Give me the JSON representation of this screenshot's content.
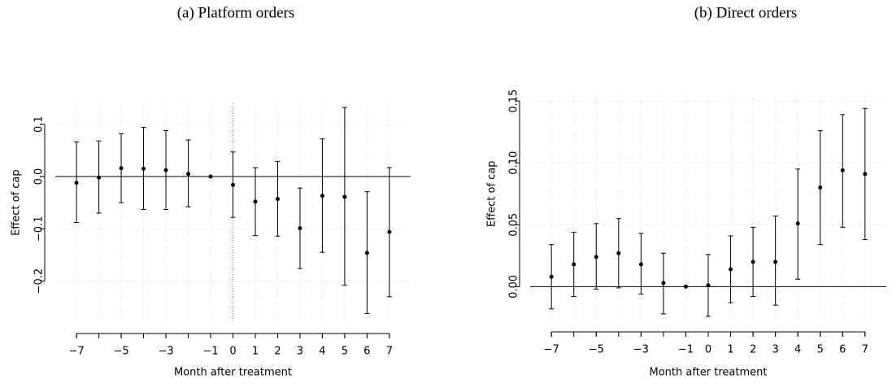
{
  "chart_data": [
    {
      "type": "errorbar",
      "title": "(a) Platform orders",
      "xlabel": "Month after treatment",
      "ylabel": "Effect of cap",
      "x": [
        -7,
        -6,
        -5,
        -4,
        -3,
        -2,
        -1,
        0,
        1,
        2,
        3,
        4,
        5,
        6,
        7
      ],
      "series": [
        {
          "color": "#000000",
          "values": [
            -0.012,
            -0.002,
            0.016,
            0.015,
            0.012,
            0.005,
            0,
            -0.016,
            -0.048,
            -0.043,
            -0.099,
            -0.037,
            -0.039,
            -0.146,
            -0.106
          ],
          "lower": [
            -0.088,
            -0.07,
            -0.05,
            -0.063,
            -0.063,
            -0.058,
            0,
            -0.078,
            -0.113,
            -0.114,
            -0.176,
            -0.145,
            -0.208,
            -0.262,
            -0.23
          ],
          "upper": [
            0.066,
            0.068,
            0.082,
            0.094,
            0.088,
            0.07,
            0,
            0.047,
            0.017,
            0.029,
            -0.022,
            0.072,
            0.132,
            -0.029,
            0.017
          ]
        }
      ],
      "xlim": [
        -7.95,
        7.95
      ],
      "ylim": [
        -0.28,
        0.14
      ],
      "xticks": [
        {
          "value": -7,
          "label": "−7"
        },
        {
          "value": -5,
          "label": "−5"
        },
        {
          "value": -3,
          "label": "−3"
        },
        {
          "value": -1,
          "label": "−1"
        },
        0,
        1,
        2,
        3,
        4,
        5,
        6,
        7
      ],
      "yticks": [
        {
          "value": -0.2,
          "label": "−0.2"
        },
        {
          "value": -0.1,
          "label": "−0.1"
        },
        {
          "value": 0,
          "label": "0.0"
        },
        0.1
      ],
      "grid": true,
      "hline": 0,
      "vline": 0
    },
    {
      "type": "errorbar",
      "title": "(b) Direct orders",
      "xlabel": "Month after treatment",
      "ylabel": "Effect of cap",
      "x": [
        -7,
        -6,
        -5,
        -4,
        -3,
        -2,
        -1,
        0,
        1,
        2,
        3,
        4,
        5,
        6,
        7
      ],
      "series": [
        {
          "color": "#000000",
          "values": [
            0.008,
            0.018,
            0.024,
            0.027,
            0.018,
            0.003,
            0,
            0.001,
            0.014,
            0.02,
            0.02,
            0.051,
            0.08,
            0.094,
            0.091
          ],
          "lower": [
            -0.018,
            -0.008,
            -0.002,
            -0.001,
            -0.006,
            -0.022,
            0,
            -0.024,
            -0.013,
            -0.008,
            -0.015,
            0.006,
            0.034,
            0.048,
            0.038
          ],
          "upper": [
            0.034,
            0.044,
            0.051,
            0.055,
            0.043,
            0.027,
            0,
            0.026,
            0.041,
            0.048,
            0.057,
            0.095,
            0.126,
            0.139,
            0.144
          ]
        }
      ],
      "xlim": [
        -7.95,
        7.95
      ],
      "ylim": [
        -0.028,
        0.156
      ],
      "xticks": [
        {
          "value": -7,
          "label": "−7"
        },
        {
          "value": -5,
          "label": "−5"
        },
        {
          "value": -3,
          "label": "−3"
        },
        {
          "value": -1,
          "label": "−1"
        },
        0,
        1,
        2,
        3,
        4,
        5,
        6,
        7
      ],
      "yticks": [
        {
          "value": 0,
          "label": "0.00"
        },
        0.05,
        {
          "value": 0.1,
          "label": "0.10"
        },
        0.15
      ],
      "grid": true,
      "hline": 0
    }
  ]
}
